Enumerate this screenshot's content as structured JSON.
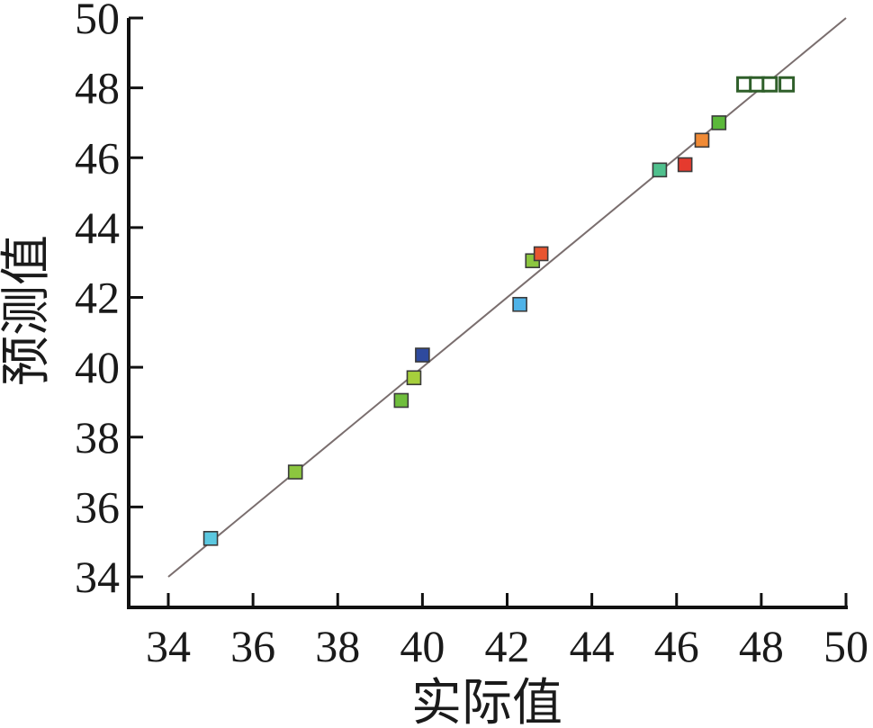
{
  "chart_data": {
    "type": "scatter",
    "title": "",
    "xlabel": "实际值",
    "ylabel": "预测值",
    "xlim": [
      34,
      50
    ],
    "ylim": [
      34,
      50
    ],
    "grid": false,
    "x_ticks": [
      "34",
      "36",
      "38",
      "40",
      "42",
      "44",
      "46",
      "48",
      "50"
    ],
    "y_ticks": [
      "34",
      "36",
      "38",
      "40",
      "42",
      "44",
      "46",
      "48",
      "50"
    ],
    "reference_line": {
      "from": [
        34,
        34
      ],
      "to": [
        50,
        50
      ],
      "color": "#7a6e6e"
    },
    "points": [
      {
        "x": 35.0,
        "y": 35.1,
        "color": "#5bc8e0"
      },
      {
        "x": 37.0,
        "y": 37.0,
        "color": "#8cc63f"
      },
      {
        "x": 39.5,
        "y": 39.05,
        "color": "#6fbe3c"
      },
      {
        "x": 39.8,
        "y": 39.7,
        "color": "#a6cf3c"
      },
      {
        "x": 40.0,
        "y": 40.35,
        "color": "#2e4a9e"
      },
      {
        "x": 42.3,
        "y": 41.8,
        "color": "#4fb3e8"
      },
      {
        "x": 42.6,
        "y": 43.05,
        "color": "#8cc63f"
      },
      {
        "x": 42.8,
        "y": 43.25,
        "color": "#e8542f"
      },
      {
        "x": 45.6,
        "y": 45.65,
        "color": "#4fc08d"
      },
      {
        "x": 46.2,
        "y": 45.8,
        "color": "#e53a2e"
      },
      {
        "x": 46.6,
        "y": 46.5,
        "color": "#f08a35"
      },
      {
        "x": 47.0,
        "y": 47.0,
        "color": "#5bb83a"
      },
      {
        "x": 47.6,
        "y": 48.1,
        "color": "#ffffff"
      },
      {
        "x": 47.9,
        "y": 48.1,
        "color": "#ffffff"
      },
      {
        "x": 48.2,
        "y": 48.1,
        "color": "#ffffff"
      },
      {
        "x": 48.6,
        "y": 48.1,
        "color": "#ffffff"
      }
    ],
    "marker_stroke": "#3a3a3a",
    "highlight_stroke": "#2f5f2a"
  }
}
